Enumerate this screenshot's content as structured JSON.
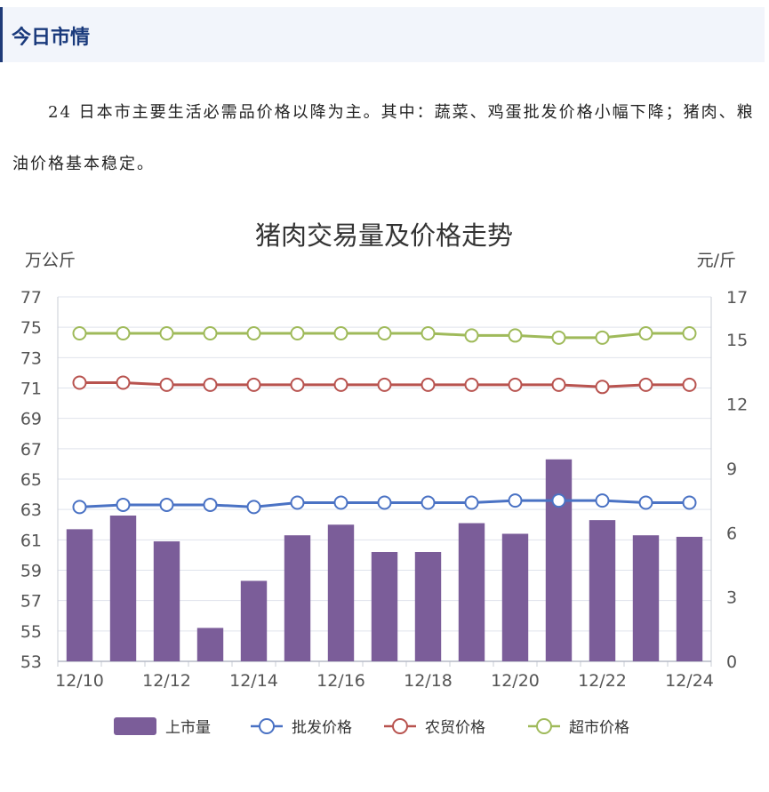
{
  "header": {
    "title": "今日市情"
  },
  "paragraph": {
    "text": "24 日本市主要生活必需品价格以降为主。其中：蔬菜、鸡蛋批发价格小幅下降；猪肉、粮油价格基本稳定。"
  },
  "chart_data": {
    "type": "bar+line",
    "title": "猪肉交易量及价格走势",
    "left_unit": "万公斤",
    "right_unit": "元/斤",
    "categories": [
      "12/10",
      "12/11",
      "12/12",
      "12/13",
      "12/14",
      "12/15",
      "12/16",
      "12/17",
      "12/18",
      "12/19",
      "12/20",
      "12/21",
      "12/22",
      "12/23",
      "12/24"
    ],
    "x_tick_labels": [
      "12/10",
      "",
      "12/12",
      "",
      "12/14",
      "",
      "12/16",
      "",
      "12/18",
      "",
      "12/20",
      "",
      "12/22",
      "",
      "12/24"
    ],
    "y_left": {
      "min": 53,
      "max": 77,
      "ticks": [
        "77",
        "75",
        "73",
        "71",
        "69",
        "67",
        "65",
        "63",
        "61",
        "59",
        "57",
        "55",
        "53"
      ]
    },
    "y_right": {
      "min": 0,
      "max": 17,
      "ticks": [
        "17",
        "15",
        "12",
        "9",
        "6",
        "3",
        "0"
      ]
    },
    "grid": true,
    "legend_position": "bottom",
    "series": [
      {
        "name": "上市量",
        "kind": "bar",
        "axis": "left",
        "color": "#7b5d99",
        "values": [
          61.7,
          62.6,
          60.9,
          55.2,
          58.3,
          61.3,
          62.0,
          60.2,
          60.2,
          62.1,
          61.4,
          66.3,
          62.3,
          61.3,
          61.2
        ]
      },
      {
        "name": "批发价格",
        "kind": "line",
        "axis": "right",
        "color": "#4a72c4",
        "values": [
          7.2,
          7.3,
          7.3,
          7.3,
          7.2,
          7.4,
          7.4,
          7.4,
          7.4,
          7.4,
          7.5,
          7.5,
          7.5,
          7.4,
          7.4
        ]
      },
      {
        "name": "农贸价格",
        "kind": "line",
        "axis": "right",
        "color": "#b8534f",
        "values": [
          13.0,
          13.0,
          12.9,
          12.9,
          12.9,
          12.9,
          12.9,
          12.9,
          12.9,
          12.9,
          12.9,
          12.9,
          12.8,
          12.9,
          12.9
        ]
      },
      {
        "name": "超市价格",
        "kind": "line",
        "axis": "right",
        "color": "#9fba5a",
        "values": [
          15.3,
          15.3,
          15.3,
          15.3,
          15.3,
          15.3,
          15.3,
          15.3,
          15.3,
          15.2,
          15.2,
          15.1,
          15.1,
          15.3,
          15.3
        ]
      }
    ]
  }
}
